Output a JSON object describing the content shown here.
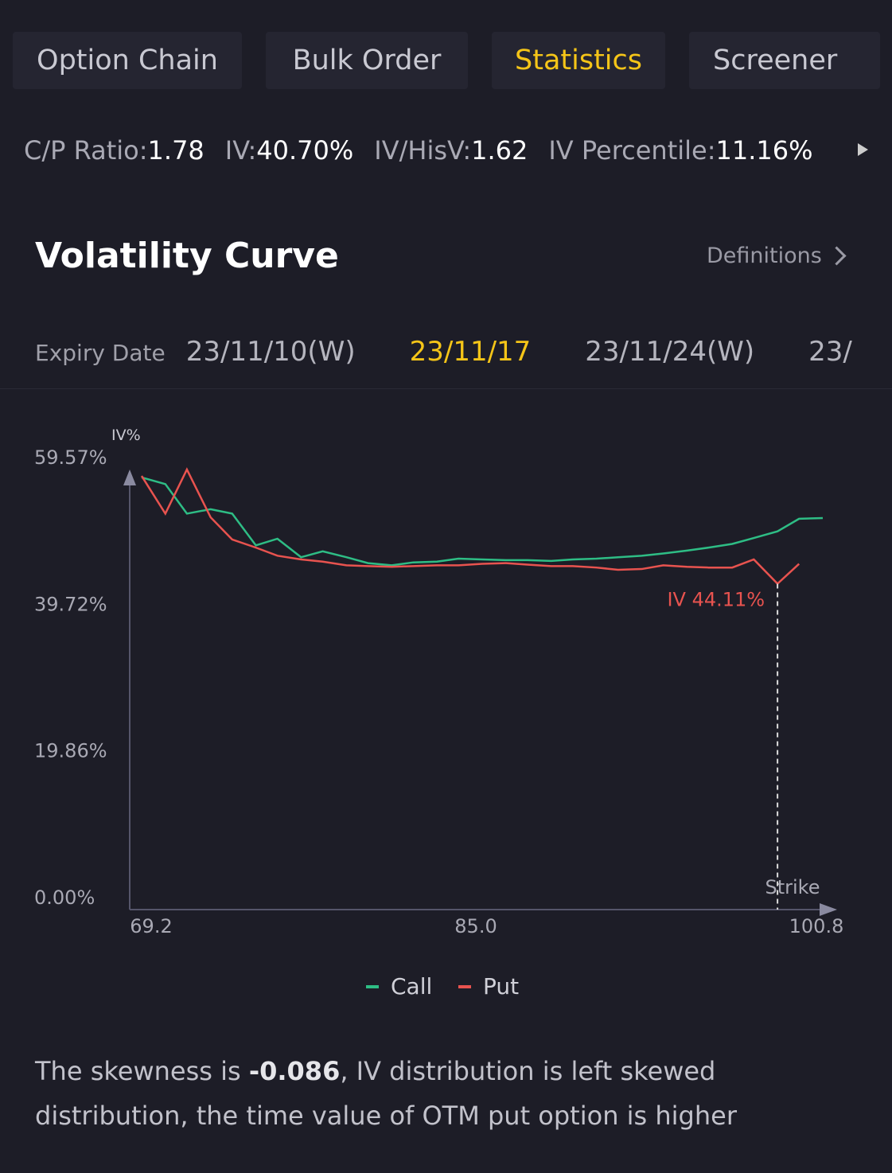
{
  "tabs": [
    "Option Chain",
    "Bulk Order",
    "Statistics",
    "Screener"
  ],
  "stats": [
    {
      "label": "C/P Ratio:",
      "value": "1.78"
    },
    {
      "label": "IV:",
      "value": "40.70%"
    },
    {
      "label": "IV/HisV:",
      "value": "1.62"
    },
    {
      "label": "IV Percentile:",
      "value": "11.16%"
    }
  ],
  "section": {
    "title": "Volatility Curve",
    "link": "Definitions"
  },
  "expiry": {
    "label": "Expiry Date",
    "dates": [
      "23/11/10(W)",
      "23/11/17",
      "23/11/24(W)",
      "23/"
    ]
  },
  "chart_data": {
    "type": "line",
    "y_label": "IV%",
    "x_label": "Strike",
    "x": [
      69.2,
      70.3,
      71.3,
      72.4,
      73.4,
      74.5,
      75.5,
      76.6,
      77.6,
      78.7,
      79.7,
      80.8,
      81.8,
      82.9,
      83.9,
      85.0,
      86.1,
      87.1,
      88.2,
      89.2,
      90.3,
      91.3,
      92.4,
      93.4,
      94.5,
      95.5,
      96.6,
      97.6,
      98.7,
      99.7,
      100.8
    ],
    "series": [
      {
        "name": "Call",
        "color": "#2ebd85",
        "values": [
          58.5,
          57.6,
          53.6,
          54.2,
          53.6,
          49.3,
          50.2,
          47.7,
          48.5,
          47.7,
          46.9,
          46.6,
          47.0,
          47.1,
          47.5,
          47.4,
          47.3,
          47.3,
          47.2,
          47.4,
          47.5,
          47.7,
          47.9,
          48.2,
          48.6,
          49.0,
          49.5,
          50.3,
          51.2,
          52.9,
          53.0
        ]
      },
      {
        "name": "Put",
        "color": "#e8534f",
        "values": [
          58.7,
          53.6,
          59.57,
          53.1,
          50.1,
          49.0,
          47.9,
          47.4,
          47.1,
          46.6,
          46.5,
          46.4,
          46.5,
          46.6,
          46.6,
          46.8,
          46.9,
          46.7,
          46.5,
          46.5,
          46.3,
          46.0,
          46.1,
          46.6,
          46.4,
          46.3,
          46.3,
          47.4,
          44.11,
          46.8,
          null
        ],
        "value_labels": [
          null,
          null,
          null,
          null,
          null,
          null,
          null,
          null,
          null,
          null,
          null,
          null,
          null,
          null,
          null,
          null,
          null,
          null,
          null,
          null,
          null,
          null,
          null,
          null,
          null,
          null,
          null,
          null,
          "IV 44.11%",
          null,
          null
        ]
      }
    ],
    "xlim": [
      69.2,
      100.8
    ],
    "xticks": [
      69.2,
      {
        "value": 85,
        "label": "85.0"
      },
      100.8
    ],
    "ylim": [
      0,
      59.57
    ],
    "yticks": [
      {
        "value": 0,
        "label": "0.00%"
      },
      {
        "value": 19.86,
        "label": "19.86%"
      },
      {
        "value": 39.72,
        "label": "39.72%"
      },
      {
        "value": 59.57,
        "label": "59.57%"
      }
    ],
    "grid": false
  },
  "summary": [
    "The skewness is ",
    "-0.086",
    ", IV distribution is left  skewed distribution, the time value of OTM put option is higher"
  ]
}
